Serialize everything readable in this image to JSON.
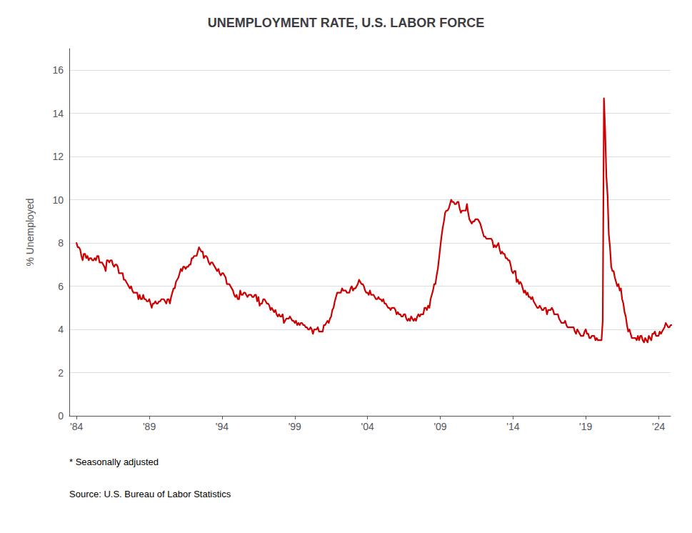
{
  "chart_data": {
    "type": "line",
    "title": "UNEMPLOYMENT RATE, U.S. LABOR FORCE",
    "ylabel": "% Unemployed",
    "annotations": [
      "* Seasonally adjusted",
      "Source: U.S. Bureau of Labor Statistics"
    ],
    "color": "#CC0000",
    "grid": true,
    "xlim": [
      1983.5,
      2024.83
    ],
    "xticks": [
      {
        "value": 1984,
        "label": "'84"
      },
      {
        "value": 1989,
        "label": "'89"
      },
      {
        "value": 1994,
        "label": "'94"
      },
      {
        "value": 1999,
        "label": "'99"
      },
      {
        "value": 2004,
        "label": "'04"
      },
      {
        "value": 2009,
        "label": "'09"
      },
      {
        "value": 2014,
        "label": "'14"
      },
      {
        "value": 2019,
        "label": "'19"
      },
      {
        "value": 2024,
        "label": "'24"
      }
    ],
    "ylim": [
      0,
      17
    ],
    "yticks": [
      0,
      2,
      4,
      6,
      8,
      10,
      12,
      14,
      16
    ],
    "x": [
      1984,
      1984.083333333333,
      1984.166666666667,
      1984.25,
      1984.333333333333,
      1984.416666666667,
      1984.5,
      1984.583333333333,
      1984.666666666667,
      1984.75,
      1984.833333333333,
      1984.916666666667,
      1985,
      1985.083333333333,
      1985.166666666667,
      1985.25,
      1985.333333333333,
      1985.416666666667,
      1985.5,
      1985.583333333333,
      1985.666666666667,
      1985.75,
      1985.833333333333,
      1985.916666666667,
      1986,
      1986.083333333333,
      1986.166666666667,
      1986.25,
      1986.333333333333,
      1986.416666666667,
      1986.5,
      1986.583333333333,
      1986.666666666667,
      1986.75,
      1986.833333333333,
      1986.916666666667,
      1987,
      1987.083333333333,
      1987.166666666667,
      1987.25,
      1987.333333333333,
      1987.416666666667,
      1987.5,
      1987.583333333333,
      1987.666666666667,
      1987.75,
      1987.833333333333,
      1987.916666666667,
      1988,
      1988.083333333333,
      1988.166666666667,
      1988.25,
      1988.333333333333,
      1988.416666666667,
      1988.5,
      1988.583333333333,
      1988.666666666667,
      1988.75,
      1988.833333333333,
      1988.916666666667,
      1989,
      1989.083333333333,
      1989.166666666667,
      1989.25,
      1989.333333333333,
      1989.416666666667,
      1989.5,
      1989.583333333333,
      1989.666666666667,
      1989.75,
      1989.833333333333,
      1989.916666666667,
      1990,
      1990.083333333333,
      1990.166666666667,
      1990.25,
      1990.333333333333,
      1990.416666666667,
      1990.5,
      1990.583333333333,
      1990.666666666667,
      1990.75,
      1990.833333333333,
      1990.916666666667,
      1991,
      1991.083333333333,
      1991.166666666667,
      1991.25,
      1991.333333333333,
      1991.416666666667,
      1991.5,
      1991.583333333333,
      1991.666666666667,
      1991.75,
      1991.833333333333,
      1991.916666666667,
      1992,
      1992.083333333333,
      1992.166666666667,
      1992.25,
      1992.333333333333,
      1992.416666666667,
      1992.5,
      1992.583333333333,
      1992.666666666667,
      1992.75,
      1992.833333333333,
      1992.916666666667,
      1993,
      1993.083333333333,
      1993.166666666667,
      1993.25,
      1993.333333333333,
      1993.416666666667,
      1993.5,
      1993.583333333333,
      1993.666666666667,
      1993.75,
      1993.833333333333,
      1993.916666666667,
      1994,
      1994.083333333333,
      1994.166666666667,
      1994.25,
      1994.333333333333,
      1994.416666666667,
      1994.5,
      1994.583333333333,
      1994.666666666667,
      1994.75,
      1994.833333333333,
      1994.916666666667,
      1995,
      1995.083333333333,
      1995.166666666667,
      1995.25,
      1995.333333333333,
      1995.416666666667,
      1995.5,
      1995.583333333333,
      1995.666666666667,
      1995.75,
      1995.833333333333,
      1995.916666666667,
      1996,
      1996.083333333333,
      1996.166666666667,
      1996.25,
      1996.333333333333,
      1996.416666666667,
      1996.5,
      1996.583333333333,
      1996.666666666667,
      1996.75,
      1996.833333333333,
      1996.916666666667,
      1997,
      1997.083333333333,
      1997.166666666667,
      1997.25,
      1997.333333333333,
      1997.416666666667,
      1997.5,
      1997.583333333333,
      1997.666666666667,
      1997.75,
      1997.833333333333,
      1997.916666666667,
      1998,
      1998.083333333333,
      1998.166666666667,
      1998.25,
      1998.333333333333,
      1998.416666666667,
      1998.5,
      1998.583333333333,
      1998.666666666667,
      1998.75,
      1998.833333333333,
      1998.916666666667,
      1999,
      1999.083333333333,
      1999.166666666667,
      1999.25,
      1999.333333333333,
      1999.416666666667,
      1999.5,
      1999.583333333333,
      1999.666666666667,
      1999.75,
      1999.833333333333,
      1999.916666666667,
      2000,
      2000.083333333333,
      2000.166666666667,
      2000.25,
      2000.333333333333,
      2000.416666666667,
      2000.5,
      2000.583333333333,
      2000.666666666667,
      2000.75,
      2000.833333333333,
      2000.916666666667,
      2001,
      2001.083333333333,
      2001.166666666667,
      2001.25,
      2001.333333333333,
      2001.416666666667,
      2001.5,
      2001.583333333333,
      2001.666666666667,
      2001.75,
      2001.833333333333,
      2001.916666666667,
      2002,
      2002.083333333333,
      2002.166666666667,
      2002.25,
      2002.333333333333,
      2002.416666666667,
      2002.5,
      2002.583333333333,
      2002.666666666667,
      2002.75,
      2002.833333333333,
      2002.916666666667,
      2003,
      2003.083333333333,
      2003.166666666667,
      2003.25,
      2003.333333333333,
      2003.416666666667,
      2003.5,
      2003.583333333333,
      2003.666666666667,
      2003.75,
      2003.833333333333,
      2003.916666666667,
      2004,
      2004.083333333333,
      2004.166666666667,
      2004.25,
      2004.333333333333,
      2004.416666666667,
      2004.5,
      2004.583333333333,
      2004.666666666667,
      2004.75,
      2004.833333333333,
      2004.916666666667,
      2005,
      2005.083333333333,
      2005.166666666667,
      2005.25,
      2005.333333333333,
      2005.416666666667,
      2005.5,
      2005.583333333333,
      2005.666666666667,
      2005.75,
      2005.833333333333,
      2005.916666666667,
      2006,
      2006.083333333333,
      2006.166666666667,
      2006.25,
      2006.333333333333,
      2006.416666666667,
      2006.5,
      2006.583333333333,
      2006.666666666667,
      2006.75,
      2006.833333333333,
      2006.916666666667,
      2007,
      2007.083333333333,
      2007.166666666667,
      2007.25,
      2007.333333333333,
      2007.416666666667,
      2007.5,
      2007.583333333333,
      2007.666666666667,
      2007.75,
      2007.833333333333,
      2007.916666666667,
      2008,
      2008.083333333333,
      2008.166666666667,
      2008.25,
      2008.333333333333,
      2008.416666666667,
      2008.5,
      2008.583333333333,
      2008.666666666667,
      2008.75,
      2008.833333333333,
      2008.916666666667,
      2009,
      2009.083333333333,
      2009.166666666667,
      2009.25,
      2009.333333333333,
      2009.416666666667,
      2009.5,
      2009.583333333333,
      2009.666666666667,
      2009.75,
      2009.833333333333,
      2009.916666666667,
      2010,
      2010.083333333333,
      2010.166666666667,
      2010.25,
      2010.333333333333,
      2010.416666666667,
      2010.5,
      2010.583333333333,
      2010.666666666667,
      2010.75,
      2010.833333333333,
      2010.916666666667,
      2011,
      2011.083333333333,
      2011.166666666667,
      2011.25,
      2011.333333333333,
      2011.416666666667,
      2011.5,
      2011.583333333333,
      2011.666666666667,
      2011.75,
      2011.833333333333,
      2011.916666666667,
      2012,
      2012.083333333333,
      2012.166666666667,
      2012.25,
      2012.333333333333,
      2012.416666666667,
      2012.5,
      2012.583333333333,
      2012.666666666667,
      2012.75,
      2012.833333333333,
      2012.916666666667,
      2013,
      2013.083333333333,
      2013.166666666667,
      2013.25,
      2013.333333333333,
      2013.416666666667,
      2013.5,
      2013.583333333333,
      2013.666666666667,
      2013.75,
      2013.833333333333,
      2013.916666666667,
      2014,
      2014.083333333333,
      2014.166666666667,
      2014.25,
      2014.333333333333,
      2014.416666666667,
      2014.5,
      2014.583333333333,
      2014.666666666667,
      2014.75,
      2014.833333333333,
      2014.916666666667,
      2015,
      2015.083333333333,
      2015.166666666667,
      2015.25,
      2015.333333333333,
      2015.416666666667,
      2015.5,
      2015.583333333333,
      2015.666666666667,
      2015.75,
      2015.833333333333,
      2015.916666666667,
      2016,
      2016.083333333333,
      2016.166666666667,
      2016.25,
      2016.333333333333,
      2016.416666666667,
      2016.5,
      2016.583333333333,
      2016.666666666667,
      2016.75,
      2016.833333333333,
      2016.916666666667,
      2017,
      2017.083333333333,
      2017.166666666667,
      2017.25,
      2017.333333333333,
      2017.416666666667,
      2017.5,
      2017.583333333333,
      2017.666666666667,
      2017.75,
      2017.833333333333,
      2017.916666666667,
      2018,
      2018.083333333333,
      2018.166666666667,
      2018.25,
      2018.333333333333,
      2018.416666666667,
      2018.5,
      2018.583333333333,
      2018.666666666667,
      2018.75,
      2018.833333333333,
      2018.916666666667,
      2019,
      2019.083333333333,
      2019.166666666667,
      2019.25,
      2019.333333333333,
      2019.416666666667,
      2019.5,
      2019.583333333333,
      2019.666666666667,
      2019.75,
      2019.833333333333,
      2019.916666666667,
      2020,
      2020.083333333333,
      2020.166666666667,
      2020.25,
      2020.333333333333,
      2020.416666666667,
      2020.5,
      2020.583333333333,
      2020.666666666667,
      2020.75,
      2020.833333333333,
      2020.916666666667,
      2021,
      2021.083333333333,
      2021.166666666667,
      2021.25,
      2021.333333333333,
      2021.416666666667,
      2021.5,
      2021.583333333333,
      2021.666666666667,
      2021.75,
      2021.833333333333,
      2021.916666666667,
      2022,
      2022.083333333333,
      2022.166666666667,
      2022.25,
      2022.333333333333,
      2022.416666666667,
      2022.5,
      2022.583333333333,
      2022.666666666667,
      2022.75,
      2022.833333333333,
      2022.916666666667,
      2023,
      2023.083333333333,
      2023.166666666667,
      2023.25,
      2023.333333333333,
      2023.416666666667,
      2023.5,
      2023.583333333333,
      2023.666666666667,
      2023.75,
      2023.833333333333,
      2023.916666666667,
      2024,
      2024.083333333333,
      2024.166666666667,
      2024.25,
      2024.333333333333,
      2024.416666666667,
      2024.5,
      2024.583333333333,
      2024.666666666667,
      2024.75,
      2024.833333333333,
      2024.916666666667
    ],
    "values": [
      8.0,
      7.8,
      7.8,
      7.7,
      7.4,
      7.2,
      7.5,
      7.5,
      7.3,
      7.4,
      7.2,
      7.3,
      7.3,
      7.2,
      7.2,
      7.3,
      7.2,
      7.4,
      7.4,
      7.1,
      7.1,
      7.1,
      7.0,
      6.9,
      6.7,
      7.2,
      7.2,
      7.1,
      7.2,
      7.2,
      7.0,
      6.9,
      7.0,
      7.0,
      6.9,
      6.6,
      6.6,
      6.6,
      6.6,
      6.3,
      6.3,
      6.2,
      6.1,
      6.0,
      5.9,
      6.0,
      5.8,
      5.7,
      5.7,
      5.7,
      5.7,
      5.4,
      5.6,
      5.4,
      5.4,
      5.6,
      5.4,
      5.4,
      5.3,
      5.3,
      5.4,
      5.2,
      5.0,
      5.2,
      5.2,
      5.3,
      5.2,
      5.2,
      5.3,
      5.3,
      5.4,
      5.4,
      5.4,
      5.3,
      5.2,
      5.4,
      5.4,
      5.2,
      5.5,
      5.7,
      5.9,
      5.9,
      6.2,
      6.3,
      6.4,
      6.6,
      6.8,
      6.7,
      6.9,
      6.9,
      6.8,
      6.9,
      6.9,
      7.0,
      7.0,
      7.3,
      7.3,
      7.4,
      7.4,
      7.4,
      7.6,
      7.8,
      7.7,
      7.6,
      7.6,
      7.3,
      7.4,
      7.4,
      7.3,
      7.1,
      7.0,
      7.1,
      7.1,
      7.0,
      6.9,
      6.8,
      6.7,
      6.8,
      6.6,
      6.5,
      6.6,
      6.6,
      6.5,
      6.4,
      6.1,
      6.1,
      6.1,
      6.0,
      5.9,
      5.8,
      5.6,
      5.5,
      5.6,
      5.4,
      5.4,
      5.8,
      5.6,
      5.6,
      5.7,
      5.7,
      5.6,
      5.5,
      5.6,
      5.6,
      5.6,
      5.5,
      5.5,
      5.6,
      5.6,
      5.3,
      5.5,
      5.1,
      5.2,
      5.2,
      5.4,
      5.4,
      5.3,
      5.2,
      5.2,
      5.1,
      4.9,
      5.0,
      4.9,
      4.8,
      4.9,
      4.7,
      4.6,
      4.7,
      4.6,
      4.6,
      4.7,
      4.3,
      4.4,
      4.5,
      4.5,
      4.5,
      4.6,
      4.5,
      4.4,
      4.4,
      4.3,
      4.4,
      4.2,
      4.3,
      4.2,
      4.3,
      4.3,
      4.2,
      4.2,
      4.1,
      4.1,
      4.0,
      4.0,
      4.1,
      4.0,
      3.8,
      4.0,
      4.0,
      4.0,
      4.1,
      3.9,
      3.9,
      3.9,
      3.9,
      4.2,
      4.2,
      4.3,
      4.4,
      4.3,
      4.5,
      4.6,
      4.9,
      5.0,
      5.3,
      5.5,
      5.7,
      5.7,
      5.7,
      5.7,
      5.9,
      5.8,
      5.8,
      5.8,
      5.7,
      5.7,
      5.7,
      5.9,
      6.0,
      5.8,
      5.9,
      5.9,
      6.0,
      6.1,
      6.3,
      6.2,
      6.1,
      6.1,
      6.0,
      5.8,
      5.7,
      5.7,
      5.6,
      5.8,
      5.6,
      5.6,
      5.6,
      5.5,
      5.4,
      5.4,
      5.5,
      5.4,
      5.4,
      5.3,
      5.4,
      5.2,
      5.2,
      5.1,
      5.0,
      5.0,
      4.9,
      5.0,
      5.0,
      5.0,
      4.9,
      4.7,
      4.8,
      4.7,
      4.7,
      4.6,
      4.6,
      4.7,
      4.7,
      4.5,
      4.4,
      4.5,
      4.4,
      4.6,
      4.5,
      4.4,
      4.5,
      4.4,
      4.6,
      4.7,
      4.6,
      4.7,
      4.7,
      4.7,
      5.0,
      5.0,
      4.9,
      5.1,
      5.0,
      5.4,
      5.6,
      5.8,
      6.1,
      6.1,
      6.5,
      6.8,
      7.3,
      7.8,
      8.3,
      8.7,
      9.0,
      9.4,
      9.5,
      9.5,
      9.6,
      9.8,
      10.0,
      9.9,
      9.9,
      9.8,
      9.8,
      9.9,
      9.9,
      9.6,
      9.4,
      9.5,
      9.5,
      9.5,
      9.5,
      9.8,
      9.4,
      9.1,
      9.0,
      8.9,
      9.0,
      9.0,
      9.1,
      9.1,
      9.1,
      9.0,
      8.9,
      8.7,
      8.5,
      8.3,
      8.3,
      8.2,
      8.2,
      8.2,
      8.2,
      8.2,
      8.1,
      7.8,
      7.9,
      7.8,
      7.9,
      8.0,
      7.7,
      7.5,
      7.6,
      7.5,
      7.5,
      7.3,
      7.3,
      7.2,
      7.2,
      7.0,
      6.7,
      6.6,
      6.7,
      6.7,
      6.2,
      6.3,
      6.1,
      6.2,
      6.1,
      5.9,
      5.7,
      5.8,
      5.6,
      5.7,
      5.5,
      5.5,
      5.4,
      5.5,
      5.3,
      5.2,
      5.1,
      5.0,
      5.0,
      5.1,
      5.0,
      4.9,
      4.9,
      5.0,
      5.0,
      4.7,
      4.9,
      4.9,
      4.9,
      5.0,
      4.9,
      4.7,
      4.7,
      4.7,
      4.7,
      4.5,
      4.4,
      4.3,
      4.3,
      4.3,
      4.4,
      4.2,
      4.1,
      4.1,
      4.1,
      4.1,
      4.1,
      4.1,
      3.9,
      3.8,
      4.0,
      3.9,
      3.8,
      3.7,
      3.7,
      3.7,
      3.9,
      4.0,
      3.8,
      3.8,
      3.6,
      3.6,
      3.7,
      3.7,
      3.7,
      3.5,
      3.6,
      3.5,
      3.5,
      3.5,
      3.5,
      4.4,
      14.7,
      13.2,
      11.1,
      10.2,
      8.4,
      7.8,
      6.9,
      6.7,
      6.7,
      6.4,
      6.2,
      6.0,
      6.1,
      5.8,
      5.9,
      5.4,
      5.2,
      4.8,
      4.6,
      4.2,
      3.9,
      4.0,
      3.8,
      3.6,
      3.6,
      3.6,
      3.6,
      3.5,
      3.7,
      3.5,
      3.7,
      3.7,
      3.5,
      3.4,
      3.6,
      3.5,
      3.4,
      3.7,
      3.6,
      3.5,
      3.8,
      3.8,
      3.9,
      3.7,
      3.7,
      3.7,
      3.9,
      3.8,
      3.9,
      4.0,
      4.1,
      4.3,
      4.2,
      4.1,
      4.1,
      4.2,
      4.2
    ]
  }
}
